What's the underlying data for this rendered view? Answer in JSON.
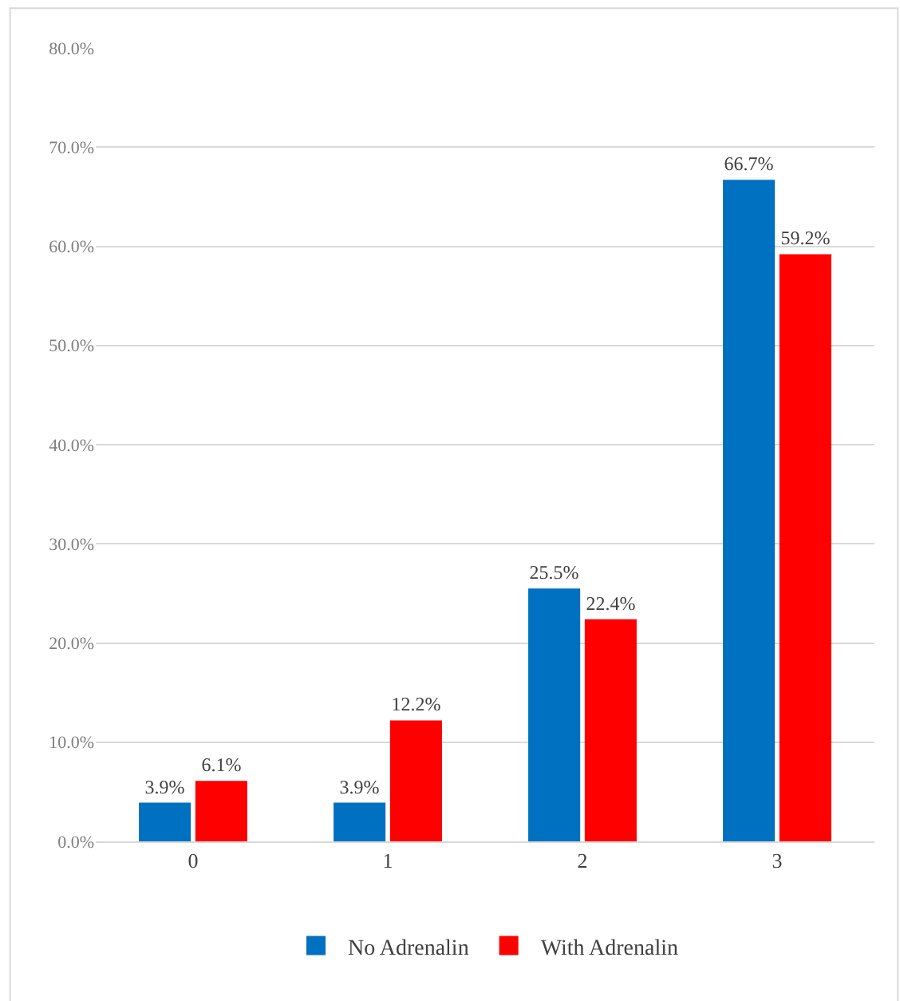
{
  "chart_data": {
    "type": "bar",
    "categories": [
      "0",
      "1",
      "2",
      "3"
    ],
    "series": [
      {
        "name": "No Adrenalin",
        "color": "#0070c0",
        "values": [
          3.9,
          3.9,
          25.5,
          66.7
        ],
        "value_labels": [
          "3.9%",
          "3.9%",
          "25.5%",
          "66.7%"
        ]
      },
      {
        "name": "With Adrenalin",
        "color": "#ff0000",
        "values": [
          6.1,
          12.2,
          22.4,
          59.2
        ],
        "value_labels": [
          "6.1%",
          "12.2%",
          "22.4%",
          "59.2%"
        ]
      }
    ],
    "ylim": [
      0,
      80
    ],
    "yticks": [
      {
        "value": 0,
        "label": "0.0%"
      },
      {
        "value": 10,
        "label": "10.0%"
      },
      {
        "value": 20,
        "label": "20.0%"
      },
      {
        "value": 30,
        "label": "30.0%"
      },
      {
        "value": 40,
        "label": "40.0%"
      },
      {
        "value": 50,
        "label": "50.0%"
      },
      {
        "value": 60,
        "label": "60.0%"
      },
      {
        "value": 70,
        "label": "70.0%"
      },
      {
        "value": 80,
        "label": "80.0%"
      }
    ],
    "grid": "y",
    "legend": "bottom"
  }
}
